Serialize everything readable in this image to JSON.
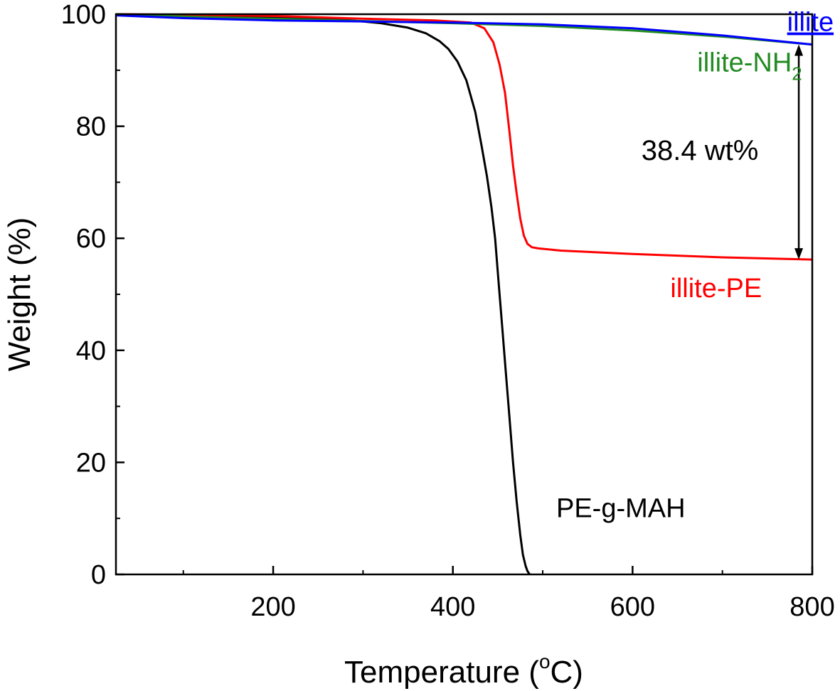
{
  "chart_data": {
    "type": "line",
    "xlabel": "Temperature (",
    "xlabel_unit_sup": "o",
    "xlabel_unit": "C)",
    "ylabel": "Weight (%)",
    "xlim": [
      25,
      800
    ],
    "ylim": [
      0,
      100
    ],
    "x_ticks": [
      200,
      400,
      600,
      800
    ],
    "x_tick_labels": [
      "200",
      "400",
      "600",
      "800"
    ],
    "x_minor_ticks": [
      100,
      300,
      500,
      700
    ],
    "y_ticks": [
      0,
      20,
      40,
      60,
      80,
      100
    ],
    "y_tick_labels": [
      "0",
      "20",
      "40",
      "60",
      "80",
      "100"
    ],
    "y_minor_ticks": [
      10,
      30,
      50,
      70,
      90
    ],
    "grid": false,
    "legend": "none",
    "series": [
      {
        "name": "PE-g-MAH",
        "color": "#000000",
        "x": [
          25,
          100,
          200,
          280,
          320,
          350,
          370,
          385,
          395,
          405,
          415,
          425,
          432,
          438,
          443,
          447,
          451,
          455,
          459,
          463,
          467,
          471,
          475,
          478,
          481,
          483,
          485,
          486
        ],
        "y": [
          100,
          99.8,
          99.5,
          99.0,
          98.4,
          97.6,
          96.6,
          95.2,
          93.8,
          91.6,
          88.2,
          82.5,
          76.5,
          71.0,
          65.5,
          60.0,
          52.0,
          44.0,
          36.0,
          28.0,
          20.0,
          13.0,
          7.0,
          3.5,
          1.5,
          0.6,
          0.1,
          0
        ]
      },
      {
        "name": "illite-PE",
        "color": "#ff0000",
        "x": [
          25,
          100,
          200,
          300,
          380,
          420,
          435,
          445,
          452,
          458,
          463,
          467,
          471,
          475,
          479,
          483,
          488,
          495,
          520,
          600,
          700,
          800
        ],
        "y": [
          100,
          99.9,
          99.7,
          99.2,
          98.9,
          98.5,
          97.5,
          95.0,
          91.0,
          86.0,
          79.0,
          73.0,
          68.0,
          63.5,
          60.5,
          59.0,
          58.4,
          58.2,
          57.8,
          57.2,
          56.6,
          56.2
        ]
      },
      {
        "name": "illite-NH",
        "name_sub": "2",
        "color": "#228b22",
        "x": [
          25,
          100,
          200,
          300,
          400,
          500,
          600,
          700,
          800
        ],
        "y": [
          100,
          99.6,
          99.2,
          98.8,
          98.4,
          97.9,
          97.1,
          96.0,
          94.6
        ]
      },
      {
        "name": "illite",
        "color": "#0000ff",
        "x": [
          25,
          100,
          200,
          300,
          400,
          500,
          600,
          700,
          800
        ],
        "y": [
          99.8,
          99.3,
          98.9,
          98.7,
          98.5,
          98.2,
          97.5,
          96.2,
          94.6
        ]
      }
    ],
    "annotations": [
      {
        "text": "38.4 wt%",
        "arrow_x": 785,
        "arrow_y_from": 94.6,
        "arrow_y_to": 56.2
      }
    ],
    "series_labels": [
      {
        "series": "illite",
        "x": 772,
        "y": 97
      },
      {
        "series": "illite-NH2",
        "x": 672,
        "y": 89.8
      },
      {
        "series": "illite-PE",
        "x": 642,
        "y": 49.5
      },
      {
        "series": "PE-g-MAH",
        "x": 515,
        "y": 10.2
      }
    ]
  }
}
